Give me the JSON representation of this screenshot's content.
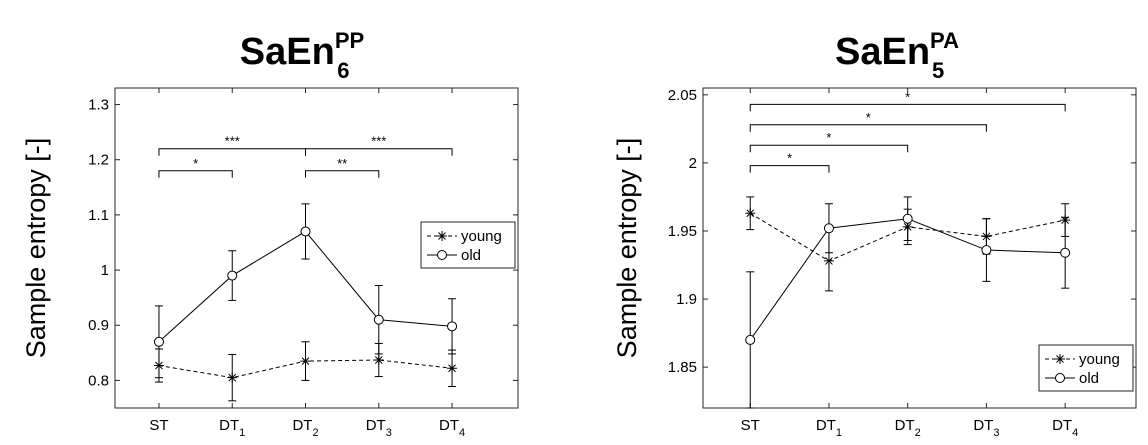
{
  "chart_data": [
    {
      "type": "line",
      "title": "SaEn",
      "title_sup": "PP",
      "title_sub": "6",
      "ylabel": "Sample entropy [-]",
      "ylim": [
        0.75,
        1.33
      ],
      "yticks": [
        0.8,
        0.9,
        1,
        1.1,
        1.2,
        1.3
      ],
      "ytick_labels": [
        "0.8",
        "0.9",
        "1",
        "1.1",
        "1.2",
        "1.3"
      ],
      "categories": [
        {
          "base": "ST",
          "sub": ""
        },
        {
          "base": "DT",
          "sub": "1"
        },
        {
          "base": "DT",
          "sub": "2"
        },
        {
          "base": "DT",
          "sub": "3"
        },
        {
          "base": "DT",
          "sub": "4"
        }
      ],
      "series": [
        {
          "name": "young",
          "style": "dashed",
          "marker": "asterisk",
          "values": [
            0.827,
            0.805,
            0.835,
            0.837,
            0.822
          ],
          "errors": [
            0.03,
            0.042,
            0.035,
            0.03,
            0.033
          ]
        },
        {
          "name": "old",
          "style": "solid",
          "marker": "circle",
          "values": [
            0.87,
            0.99,
            1.07,
            0.91,
            0.898
          ],
          "errors": [
            0.065,
            0.045,
            0.05,
            0.062,
            0.05
          ]
        }
      ],
      "legend_position": "right",
      "significance": [
        {
          "from": 0,
          "to": 2,
          "level": 1.22,
          "label": "***"
        },
        {
          "from": 2,
          "to": 4,
          "level": 1.22,
          "label": "***"
        },
        {
          "from": 0,
          "to": 1,
          "level": 1.18,
          "label": "*"
        },
        {
          "from": 2,
          "to": 3,
          "level": 1.18,
          "label": "**"
        }
      ]
    },
    {
      "type": "line",
      "title": "SaEn",
      "title_sup": "PA",
      "title_sub": "5",
      "ylabel": "Sample entropy [-]",
      "ylim": [
        1.82,
        2.055
      ],
      "yticks": [
        1.85,
        1.9,
        1.95,
        2.0,
        2.05
      ],
      "ytick_labels": [
        "1.85",
        "1.9",
        "1.95",
        "2",
        "2.05"
      ],
      "categories": [
        {
          "base": "ST",
          "sub": ""
        },
        {
          "base": "DT",
          "sub": "1"
        },
        {
          "base": "DT",
          "sub": "2"
        },
        {
          "base": "DT",
          "sub": "3"
        },
        {
          "base": "DT",
          "sub": "4"
        }
      ],
      "series": [
        {
          "name": "young",
          "style": "dashed",
          "marker": "asterisk",
          "values": [
            1.963,
            1.928,
            1.953,
            1.946,
            1.958
          ],
          "errors": [
            0.012,
            0.022,
            0.013,
            0.013,
            0.012
          ]
        },
        {
          "name": "old",
          "style": "solid",
          "marker": "circle",
          "values": [
            1.87,
            1.952,
            1.959,
            1.936,
            1.934
          ],
          "errors": [
            0.05,
            0.018,
            0.016,
            0.023,
            0.026
          ]
        }
      ],
      "legend_position": "bottom-right",
      "significance": [
        {
          "from": 0,
          "to": 4,
          "level": 2.043,
          "label": "*"
        },
        {
          "from": 0,
          "to": 3,
          "level": 2.028,
          "label": "*"
        },
        {
          "from": 0,
          "to": 2,
          "level": 2.013,
          "label": "*"
        },
        {
          "from": 0,
          "to": 1,
          "level": 1.998,
          "label": "*"
        }
      ]
    }
  ]
}
